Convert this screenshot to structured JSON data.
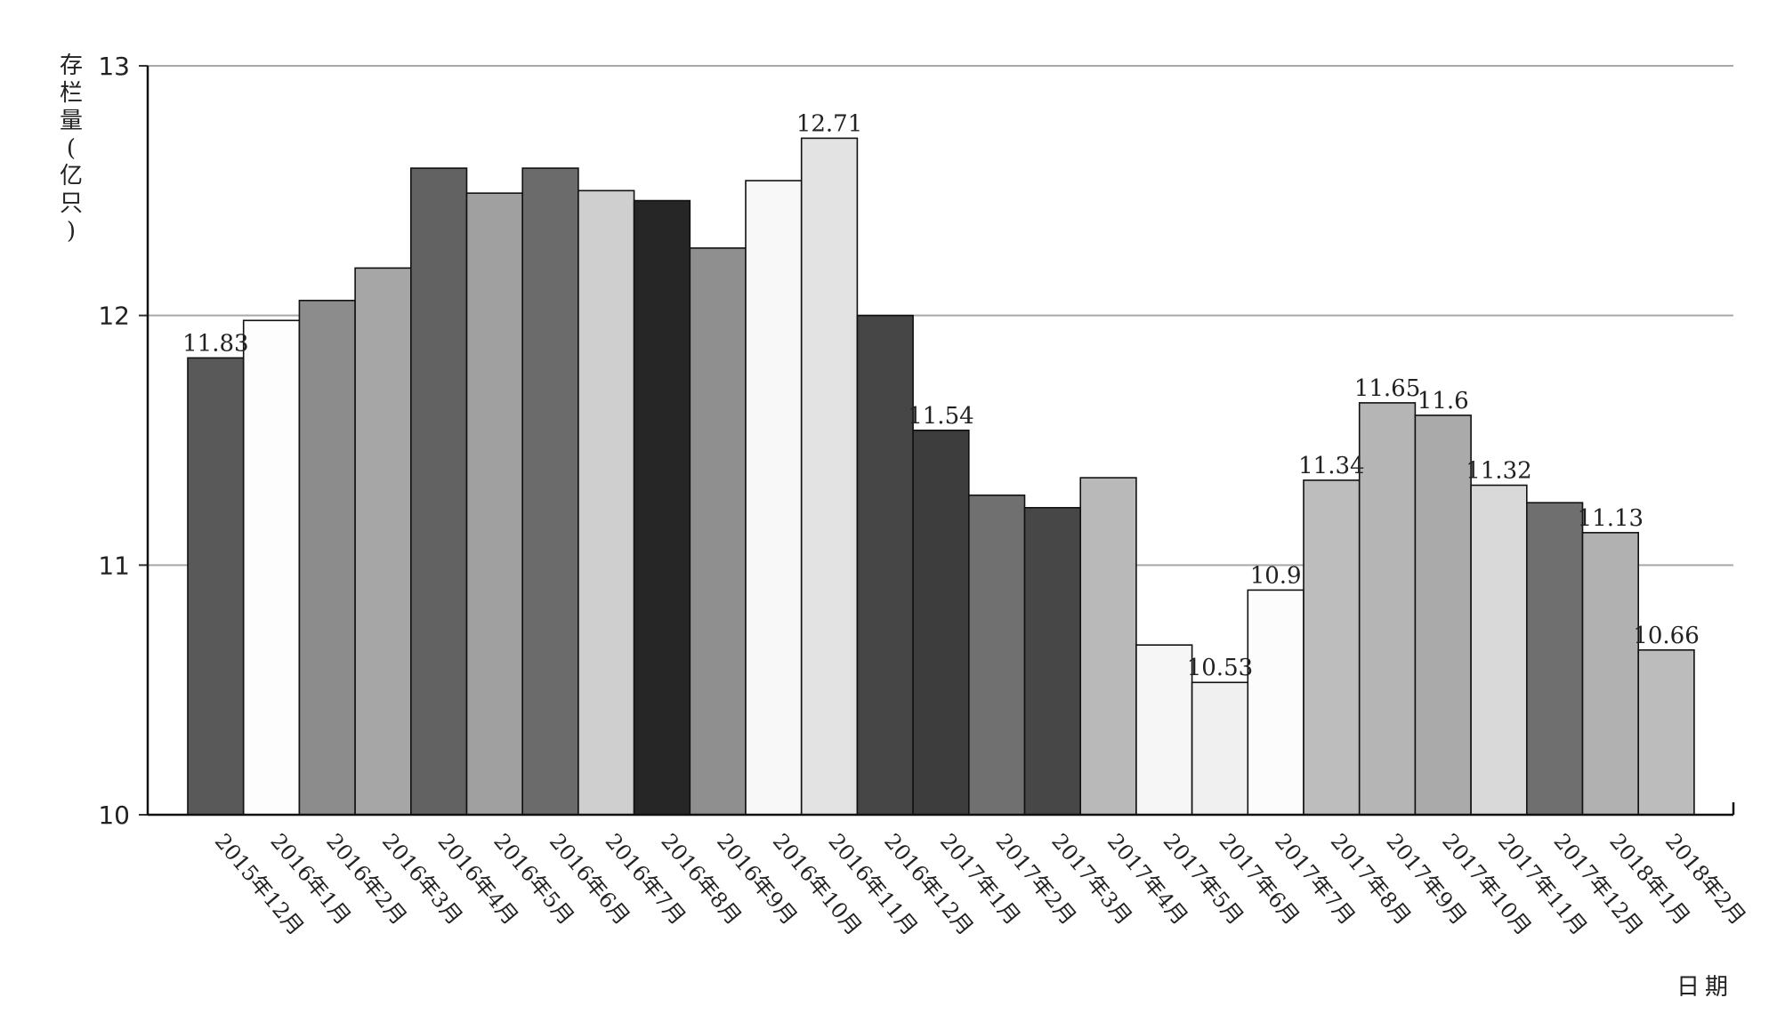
{
  "chart_data": {
    "type": "bar",
    "title": "",
    "ylabel": "存栏量(亿只)",
    "xlabel": "日期",
    "ylim": [
      10,
      13
    ],
    "yticks": [
      10,
      11,
      12,
      13
    ],
    "grid": true,
    "categories": [
      "2015年12月",
      "2016年1月",
      "2016年2月",
      "2016年3月",
      "2016年4月",
      "2016年5月",
      "2016年6月",
      "2016年7月",
      "2016年8月",
      "2016年9月",
      "2016年10月",
      "2016年11月",
      "2016年12月",
      "2017年1月",
      "2017年2月",
      "2017年3月",
      "2017年4月",
      "2017年5月",
      "2017年6月",
      "2017年7月",
      "2017年8月",
      "2017年9月",
      "2017年10月",
      "2017年11月",
      "2017年12月",
      "2018年1月",
      "2018年2月"
    ],
    "values": [
      11.83,
      11.98,
      12.06,
      12.19,
      12.59,
      12.49,
      12.59,
      12.5,
      12.46,
      12.27,
      12.54,
      12.71,
      12.0,
      11.54,
      11.28,
      11.23,
      11.35,
      10.68,
      10.53,
      10.9,
      11.34,
      11.65,
      11.6,
      11.32,
      11.25,
      11.13,
      10.66
    ],
    "data_labels": [
      "11.83",
      "",
      "",
      "",
      "",
      "",
      "",
      "",
      "",
      "",
      "",
      "12.71",
      "",
      "11.54",
      "",
      "",
      "",
      "",
      "10.53",
      "10.9",
      "11.34",
      "11.65",
      "11.6",
      "11.32",
      "",
      "11.13",
      "10.66"
    ],
    "colors": [
      "#595959",
      "#fdfdfd",
      "#8c8c8c",
      "#a6a6a6",
      "#626262",
      "#a0a0a0",
      "#6b6b6b",
      "#cfcfcf",
      "#262626",
      "#8f8f8f",
      "#f8f8f8",
      "#e3e3e3",
      "#464646",
      "#3d3d3d",
      "#707070",
      "#474747",
      "#b9b9b9",
      "#f6f6f6",
      "#f0f0f0",
      "#fcfcfc",
      "#bdbdbd",
      "#b5b5b5",
      "#aaaaaa",
      "#d9d9d9",
      "#6f6f6f",
      "#b1b1b1",
      "#bcbcbc"
    ]
  }
}
